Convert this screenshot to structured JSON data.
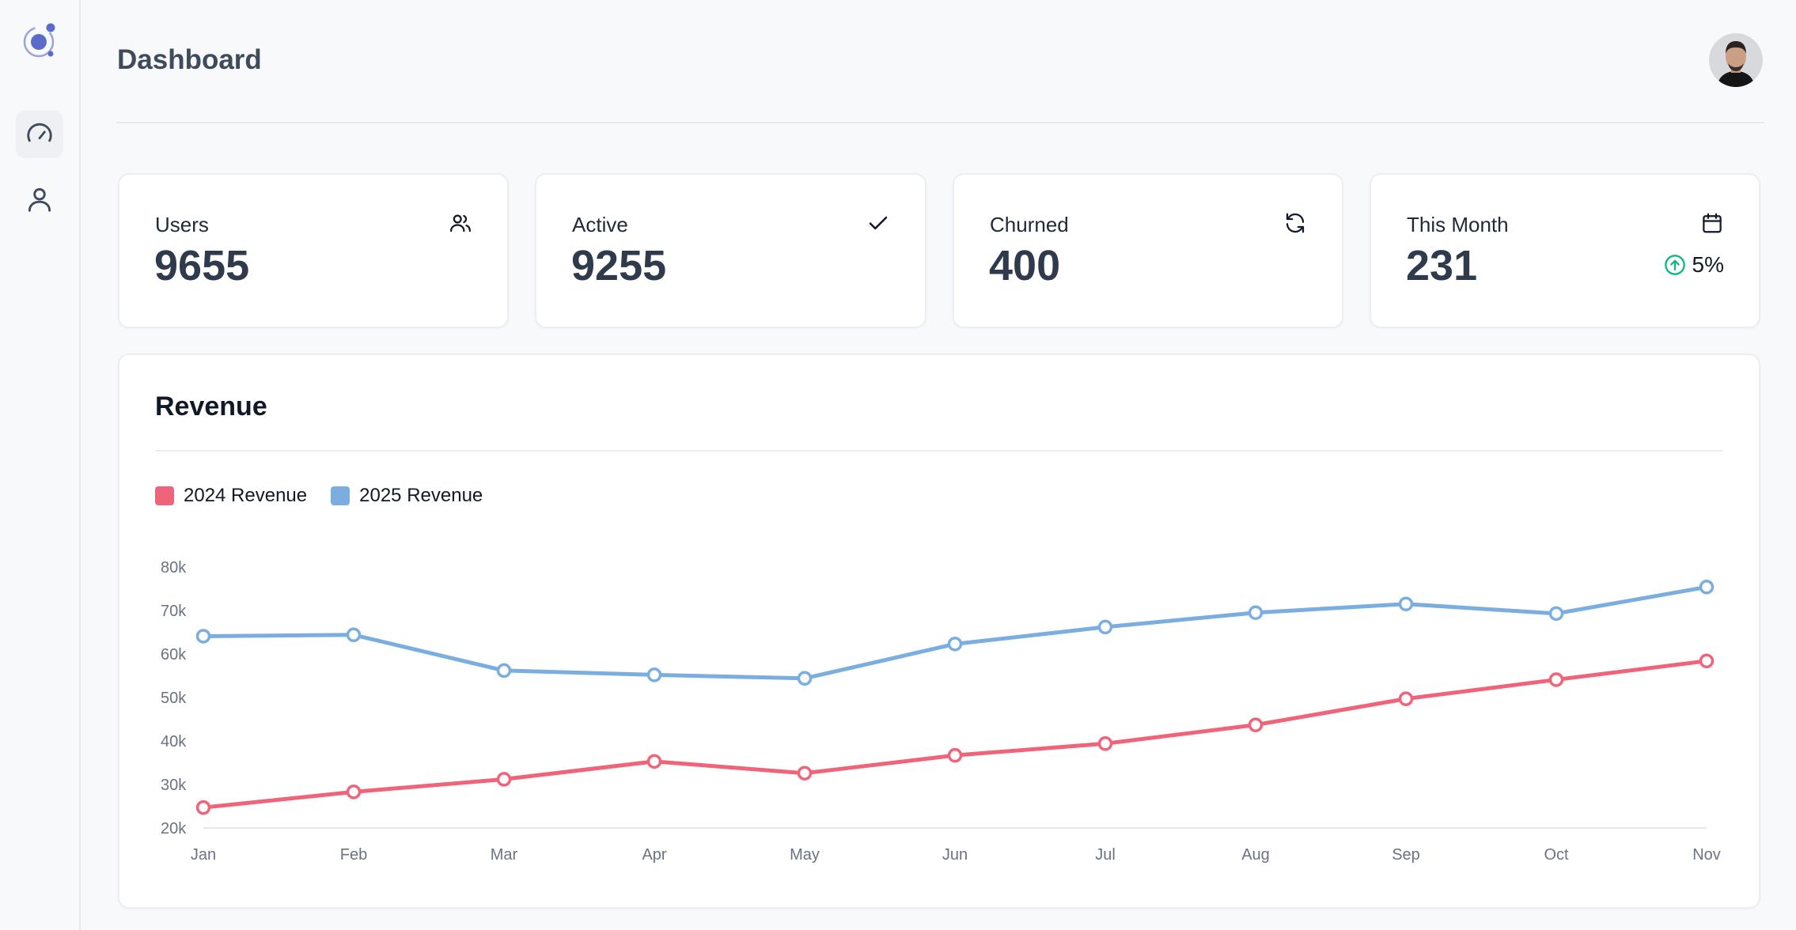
{
  "sidebar": {
    "logo": "atom-logo-icon",
    "items": [
      {
        "name": "dashboard",
        "icon": "gauge-icon",
        "active": true
      },
      {
        "name": "profile",
        "icon": "user-icon",
        "active": false
      }
    ]
  },
  "header": {
    "title": "Dashboard",
    "avatar": "user-avatar"
  },
  "stats": [
    {
      "label": "Users",
      "value": "9655",
      "icon": "users-icon"
    },
    {
      "label": "Active",
      "value": "9255",
      "icon": "check-icon"
    },
    {
      "label": "Churned",
      "value": "400",
      "icon": "refresh-icon"
    },
    {
      "label": "This Month",
      "value": "231",
      "icon": "calendar-icon",
      "trend": {
        "value": "5%",
        "direction": "up",
        "color": "#10b981"
      }
    }
  ],
  "revenue": {
    "title": "Revenue"
  },
  "colors": {
    "series_2024": "#f0647a",
    "series_2025": "#7aaee0",
    "accent": "#5b6bc9"
  },
  "chart_data": {
    "type": "line",
    "x": [
      "Jan",
      "Feb",
      "Mar",
      "Apr",
      "May",
      "Jun",
      "Jul",
      "Aug",
      "Sep",
      "Oct",
      "Nov"
    ],
    "series": [
      {
        "name": "2024 Revenue",
        "values": [
          24700,
          28300,
          31200,
          35300,
          32600,
          36700,
          39400,
          43700,
          49700,
          54100,
          58400
        ]
      },
      {
        "name": "2025 Revenue",
        "values": [
          64100,
          64400,
          56200,
          55200,
          54400,
          62300,
          66200,
          69500,
          71500,
          69300,
          75400
        ]
      }
    ],
    "yticks": [
      "80k",
      "70k",
      "60k",
      "50k",
      "40k",
      "30k",
      "20k"
    ],
    "ylim": [
      20000,
      80000
    ],
    "legend": "top-left",
    "grid": false
  }
}
